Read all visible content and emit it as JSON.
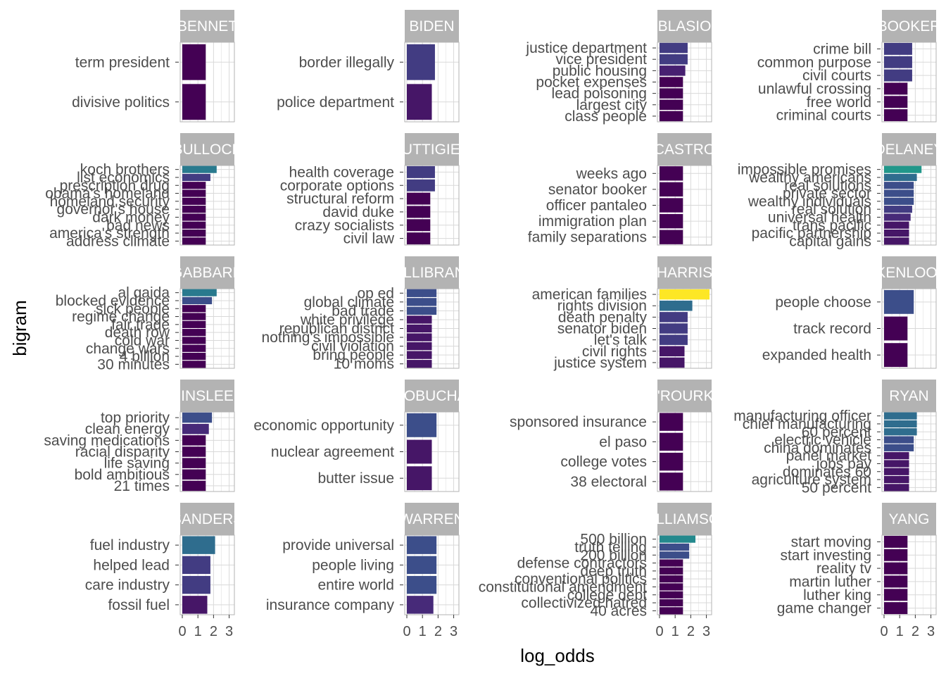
{
  "chart_data": {
    "type": "bar",
    "orientation": "horizontal",
    "facet_layout": "5 rows x 4 columns",
    "xlabel": "log_odds",
    "ylabel": "bigram",
    "xlim": [
      0,
      3.2
    ],
    "xticks": [
      "0",
      "1",
      "2",
      "3"
    ],
    "color_scale": "viridis",
    "grid": true,
    "panels": [
      {
        "candidate": "BENNET",
        "bigrams": [
          "term president",
          "divisive politics"
        ],
        "values": [
          1.5,
          1.5
        ]
      },
      {
        "candidate": "BIDEN",
        "bigrams": [
          "border illegally",
          "police department"
        ],
        "values": [
          1.8,
          1.6
        ]
      },
      {
        "candidate": "BLASIO",
        "bigrams": [
          "justice department",
          "vice president",
          "public housing",
          "pocket expenses",
          "lead poisoning",
          "largest city",
          "class people"
        ],
        "values": [
          1.8,
          1.8,
          1.65,
          1.5,
          1.5,
          1.5,
          1.5
        ]
      },
      {
        "candidate": "BOOKER",
        "bigrams": [
          "crime bill",
          "common purpose",
          "civil courts",
          "unlawful crossing",
          "free world",
          "criminal courts"
        ],
        "values": [
          1.8,
          1.8,
          1.8,
          1.5,
          1.5,
          1.5
        ]
      },
      {
        "candidate": "BULLOCK",
        "bigrams": [
          "koch brothers",
          "list economics",
          "prescription drug",
          "obama's homeland",
          "homeland security",
          "governor's house",
          "dark money",
          "bad news",
          "america's strength",
          "address climate"
        ],
        "values": [
          2.2,
          1.8,
          1.5,
          1.5,
          1.5,
          1.5,
          1.5,
          1.5,
          1.5,
          1.5
        ]
      },
      {
        "candidate": "BUTTIGIEG",
        "bigrams": [
          "health coverage",
          "corporate options",
          "structural reform",
          "david duke",
          "crazy socialists",
          "civil law"
        ],
        "values": [
          1.8,
          1.8,
          1.5,
          1.5,
          1.5,
          1.5
        ]
      },
      {
        "candidate": "CASTRO",
        "bigrams": [
          "weeks ago",
          "senator booker",
          "officer pantaleo",
          "immigration plan",
          "family separations"
        ],
        "values": [
          1.5,
          1.5,
          1.5,
          1.5,
          1.5
        ]
      },
      {
        "candidate": "DELANEY",
        "bigrams": [
          "impossible promises",
          "wealthy americans",
          "real solutions",
          "private sector",
          "wealthy individuals",
          "real solution",
          "universal health",
          "trans pacific",
          "pacific partnership",
          "capital gains"
        ],
        "values": [
          2.4,
          2.1,
          1.9,
          1.9,
          1.9,
          1.8,
          1.7,
          1.6,
          1.6,
          1.6
        ]
      },
      {
        "candidate": "GABBARD",
        "bigrams": [
          "al qaida",
          "blocked evidence",
          "sick people",
          "regime change",
          "fair trade",
          "death row",
          "cold war",
          "change wars",
          "4 billion",
          "30 minutes"
        ],
        "values": [
          2.2,
          1.9,
          1.5,
          1.5,
          1.5,
          1.5,
          1.5,
          1.5,
          1.5,
          1.5
        ]
      },
      {
        "candidate": "GILLIBRAND",
        "bigrams": [
          "op ed",
          "global climate",
          "bad trade",
          "white privilege",
          "republican district",
          "nothing's impossible",
          "civil violation",
          "bring people",
          "10 moms"
        ],
        "values": [
          1.9,
          1.9,
          1.9,
          1.6,
          1.6,
          1.6,
          1.6,
          1.6,
          1.6
        ]
      },
      {
        "candidate": "HARRIS",
        "bigrams": [
          "american families",
          "rights division",
          "death penalty",
          "senator biden",
          "let's talk",
          "civil rights",
          "justice system"
        ],
        "values": [
          3.2,
          2.1,
          1.8,
          1.8,
          1.8,
          1.6,
          1.6
        ]
      },
      {
        "candidate": "HICKENLOOPER",
        "bigrams": [
          "people choose",
          "track record",
          "expanded health"
        ],
        "values": [
          1.9,
          1.5,
          1.5
        ]
      },
      {
        "candidate": "INSLEE",
        "bigrams": [
          "top priority",
          "clean energy",
          "saving medications",
          "racial disparity",
          "life saving",
          "bold ambitious",
          "21 times"
        ],
        "values": [
          1.9,
          1.7,
          1.5,
          1.5,
          1.5,
          1.5,
          1.5
        ]
      },
      {
        "candidate": "KLOBUCHAR",
        "bigrams": [
          "economic opportunity",
          "nuclear agreement",
          "butter issue"
        ],
        "values": [
          1.9,
          1.6,
          1.6
        ]
      },
      {
        "candidate": "O'ROURKE",
        "bigrams": [
          "sponsored insurance",
          "el paso",
          "college votes",
          "38 electoral"
        ],
        "values": [
          1.5,
          1.5,
          1.5,
          1.5
        ]
      },
      {
        "candidate": "RYAN",
        "bigrams": [
          "manufacturing officer",
          "chief manufacturing",
          "60 percent",
          "electric vehicle",
          "china dominates",
          "panel market",
          "jobs pay",
          "dominates 60",
          "agriculture system",
          "50 percent"
        ],
        "values": [
          2.1,
          2.1,
          2.1,
          1.9,
          1.9,
          1.6,
          1.6,
          1.6,
          1.6,
          1.6
        ]
      },
      {
        "candidate": "SANDERS",
        "bigrams": [
          "fuel industry",
          "helped lead",
          "care industry",
          "fossil fuel"
        ],
        "values": [
          2.1,
          1.8,
          1.8,
          1.6
        ]
      },
      {
        "candidate": "WARREN",
        "bigrams": [
          "provide universal",
          "people living",
          "entire world",
          "insurance company"
        ],
        "values": [
          1.9,
          1.9,
          1.9,
          1.7
        ]
      },
      {
        "candidate": "WILLIAMSON",
        "bigrams": [
          "500 billion",
          "truth telling",
          "200 billion",
          "defense contractors",
          "deep truth",
          "conventional politics",
          "constitutional amendment",
          "college debt",
          "collectivized hatred",
          "40 acres"
        ],
        "values": [
          2.3,
          1.9,
          1.9,
          1.5,
          1.5,
          1.5,
          1.5,
          1.5,
          1.5,
          1.5
        ]
      },
      {
        "candidate": "YANG",
        "bigrams": [
          "start moving",
          "start investing",
          "reality tv",
          "martin luther",
          "luther king",
          "game changer"
        ],
        "values": [
          1.5,
          1.5,
          1.5,
          1.5,
          1.5,
          1.5
        ]
      }
    ],
    "colors": {
      "strip_background": "#b3b3b3",
      "strip_text": "#ffffff",
      "panel_border": "#b3b3b3",
      "grid_major": "#d9d9d9",
      "grid_minor": "#ededed",
      "viridis": [
        "#440154",
        "#482878",
        "#3e4a89",
        "#31688e",
        "#26828e",
        "#1f9e89",
        "#35b779",
        "#6ece58",
        "#b5de2b",
        "#fde725"
      ]
    }
  }
}
